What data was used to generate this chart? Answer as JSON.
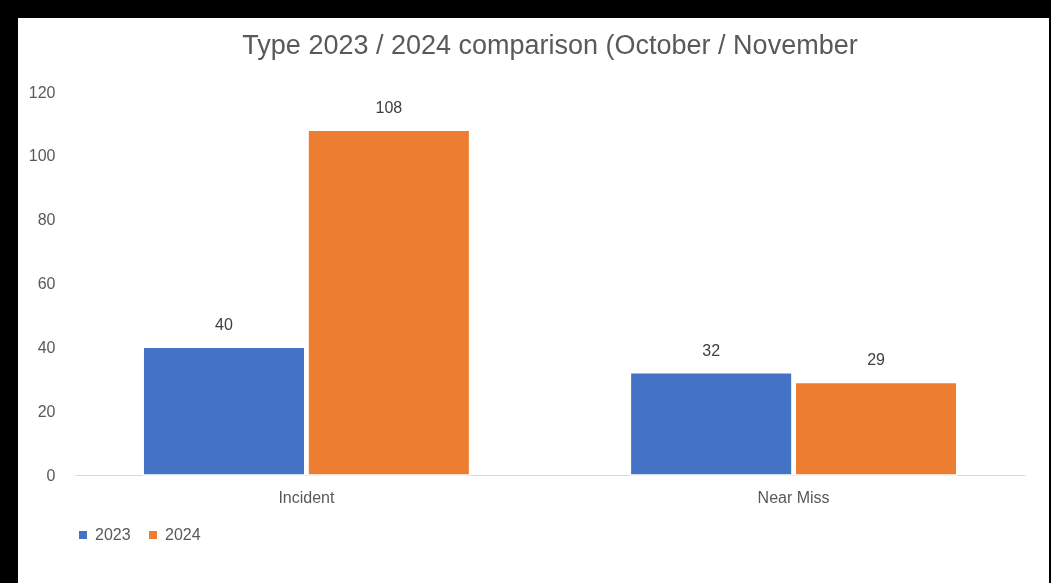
{
  "chart_data": {
    "type": "bar",
    "title": "Type 2023 / 2024 comparison (October / November",
    "categories": [
      "Incident",
      "Near Miss"
    ],
    "series": [
      {
        "name": "2023",
        "color": "#4472c4",
        "values": [
          40,
          32
        ]
      },
      {
        "name": "2024",
        "color": "#ed7d31",
        "values": [
          108,
          29
        ]
      }
    ],
    "ylim": [
      0,
      120
    ],
    "yticks": [
      0,
      20,
      40,
      60,
      80,
      100,
      120
    ],
    "grid": false,
    "legend": "bottom",
    "data_labels": true
  }
}
